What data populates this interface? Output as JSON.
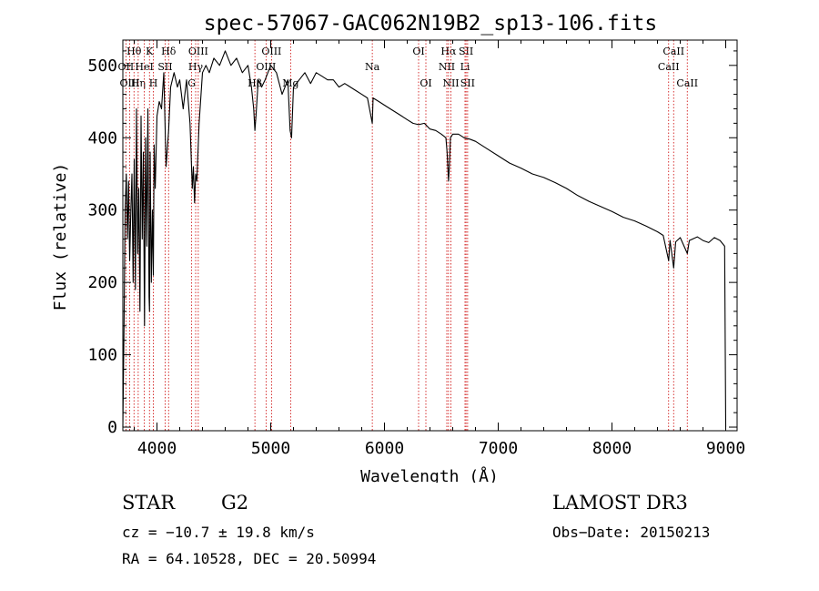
{
  "chart_data": {
    "type": "line",
    "title": "spec-57067-GAC062N19B2_sp13-106.fits",
    "xlabel": "Wavelength (Å)",
    "ylabel": "Flux (relative)",
    "xlim": [
      3700,
      9100
    ],
    "ylim": [
      -5,
      535
    ],
    "xticks": [
      4000,
      5000,
      6000,
      7000,
      8000,
      9000
    ],
    "yticks": [
      0,
      100,
      200,
      300,
      400,
      500
    ],
    "series": [
      {
        "name": "flux",
        "x": [
          3700,
          3710,
          3720,
          3730,
          3740,
          3750,
          3760,
          3770,
          3780,
          3790,
          3800,
          3810,
          3820,
          3830,
          3840,
          3850,
          3860,
          3870,
          3880,
          3890,
          3900,
          3910,
          3920,
          3930,
          3934,
          3940,
          3950,
          3960,
          3968,
          3975,
          3985,
          4000,
          4020,
          4040,
          4060,
          4080,
          4102,
          4120,
          4150,
          4180,
          4200,
          4230,
          4260,
          4290,
          4310,
          4320,
          4330,
          4340,
          4350,
          4370,
          4400,
          4430,
          4460,
          4500,
          4550,
          4600,
          4650,
          4700,
          4750,
          4800,
          4830,
          4850,
          4861,
          4870,
          4890,
          4920,
          4950,
          5000,
          5050,
          5100,
          5150,
          5170,
          5183,
          5200,
          5250,
          5300,
          5350,
          5400,
          5450,
          5500,
          5550,
          5600,
          5650,
          5700,
          5750,
          5800,
          5850,
          5893,
          5900,
          5950,
          6000,
          6050,
          6100,
          6150,
          6200,
          6250,
          6300,
          6350,
          6400,
          6450,
          6500,
          6540,
          6550,
          6563,
          6570,
          6580,
          6600,
          6650,
          6700,
          6750,
          6800,
          6900,
          7000,
          7100,
          7200,
          7300,
          7400,
          7500,
          7600,
          7700,
          7800,
          7900,
          8000,
          8100,
          8200,
          8300,
          8400,
          8450,
          8498,
          8510,
          8542,
          8560,
          8600,
          8662,
          8680,
          8750,
          8800,
          8850,
          8900,
          8950,
          8990,
          9000
        ],
        "values": [
          0,
          140,
          300,
          350,
          260,
          340,
          230,
          300,
          350,
          200,
          370,
          190,
          440,
          240,
          330,
          160,
          430,
          260,
          380,
          140,
          400,
          250,
          440,
          180,
          160,
          380,
          200,
          300,
          210,
          390,
          330,
          430,
          450,
          440,
          490,
          360,
          410,
          470,
          490,
          470,
          480,
          440,
          480,
          420,
          330,
          360,
          310,
          350,
          340,
          420,
          490,
          500,
          490,
          510,
          500,
          520,
          500,
          510,
          490,
          500,
          470,
          440,
          410,
          430,
          480,
          470,
          480,
          500,
          490,
          460,
          480,
          410,
          400,
          470,
          480,
          490,
          475,
          490,
          485,
          480,
          480,
          470,
          475,
          470,
          465,
          460,
          455,
          420,
          455,
          450,
          445,
          440,
          435,
          430,
          425,
          420,
          418,
          420,
          412,
          410,
          405,
          400,
          380,
          340,
          360,
          400,
          405,
          405,
          400,
          398,
          395,
          385,
          375,
          365,
          358,
          350,
          345,
          338,
          330,
          320,
          312,
          305,
          298,
          290,
          285,
          278,
          270,
          265,
          230,
          258,
          220,
          256,
          262,
          240,
          258,
          263,
          258,
          255,
          262,
          258,
          250,
          0
        ]
      }
    ],
    "lines": [
      {
        "label": "Hθ",
        "wave": 3798,
        "pos": "top",
        "row": 1
      },
      {
        "label": "OII",
        "wave": 3727,
        "pos": "top",
        "row": 2
      },
      {
        "label": "OIII",
        "wave": 3760,
        "pos": "top",
        "row": 3
      },
      {
        "label": "Hη",
        "wave": 3835,
        "pos": "top",
        "row": 3
      },
      {
        "label": "K",
        "wave": 3934,
        "pos": "top",
        "row": 1
      },
      {
        "label": "HeI",
        "wave": 3889,
        "pos": "top",
        "row": 2
      },
      {
        "label": "H",
        "wave": 3968,
        "pos": "top",
        "row": 3
      },
      {
        "label": "SII",
        "wave": 4072,
        "pos": "top",
        "row": 2
      },
      {
        "label": "Hδ",
        "wave": 4102,
        "pos": "top",
        "row": 1
      },
      {
        "label": "OIII",
        "wave": 4363,
        "pos": "top",
        "row": 1
      },
      {
        "label": "Hγ",
        "wave": 4340,
        "pos": "top",
        "row": 2
      },
      {
        "label": "G",
        "wave": 4305,
        "pos": "top",
        "row": 3
      },
      {
        "label": "OIII",
        "wave": 5007,
        "pos": "top",
        "row": 1
      },
      {
        "label": "OIII",
        "wave": 4959,
        "pos": "top",
        "row": 2
      },
      {
        "label": "Hβ",
        "wave": 4861,
        "pos": "top",
        "row": 3
      },
      {
        "label": "Mg",
        "wave": 5175,
        "pos": "top",
        "row": 3
      },
      {
        "label": "Na",
        "wave": 5893,
        "pos": "top",
        "row": 2
      },
      {
        "label": "OI",
        "wave": 6300,
        "pos": "top",
        "row": 1
      },
      {
        "label": "OI",
        "wave": 6364,
        "pos": "top",
        "row": 3
      },
      {
        "label": "Hα",
        "wave": 6563,
        "pos": "top",
        "row": 1
      },
      {
        "label": "NII",
        "wave": 6548,
        "pos": "top",
        "row": 2
      },
      {
        "label": "NII",
        "wave": 6584,
        "pos": "top",
        "row": 3
      },
      {
        "label": "SII",
        "wave": 6717,
        "pos": "top",
        "row": 1
      },
      {
        "label": "Li",
        "wave": 6708,
        "pos": "top",
        "row": 2
      },
      {
        "label": "SII",
        "wave": 6731,
        "pos": "top",
        "row": 3
      },
      {
        "label": "CaII",
        "wave": 8542,
        "pos": "top",
        "row": 1
      },
      {
        "label": "CaII",
        "wave": 8498,
        "pos": "top",
        "row": 2
      },
      {
        "label": "CaII",
        "wave": 8662,
        "pos": "top",
        "row": 3
      }
    ]
  },
  "info": {
    "object_class": "STAR",
    "subclass": "G2",
    "survey": "LAMOST DR3",
    "redshift": "cz = −10.7 ± 19.8 km/s",
    "obs_date": "Obs−Date: 20150213",
    "coords": "RA =  64.10528, DEC =  20.50994"
  },
  "colors": {
    "spectrum": "#000000",
    "line_markers": "#cc0000",
    "axes": "#000000"
  }
}
